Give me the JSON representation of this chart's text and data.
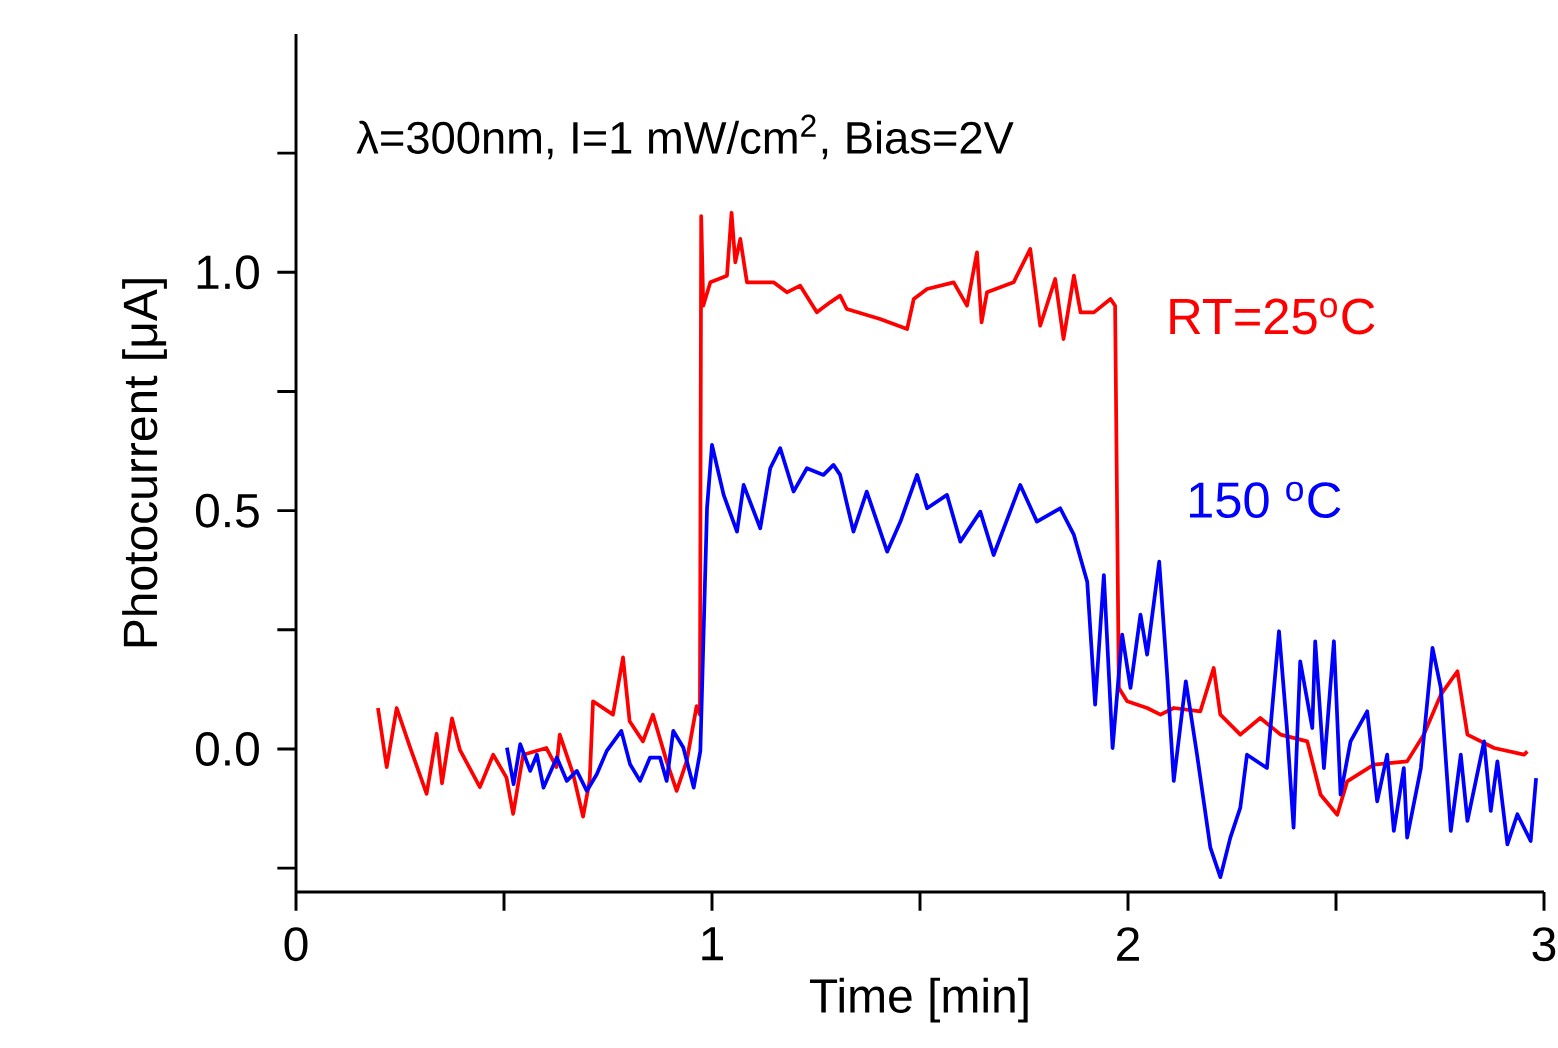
{
  "chart_data": {
    "type": "line",
    "xlabel": "Time [min]",
    "ylabel": "Photocurrent [μA]",
    "annotations": [
      "λ=300nm, I=1 mW/cm$^{2}$, Bias=2V"
    ],
    "xlim": [
      0,
      3
    ],
    "ylim": [
      -0.3,
      1.5
    ],
    "xticks": [
      0,
      {
        "value": 0.5,
        "label": null
      },
      1,
      {
        "value": 1.5,
        "label": null
      },
      2,
      {
        "value": 2.5,
        "label": null
      },
      3
    ],
    "yticks": [
      {
        "value": -0.25,
        "label": null
      },
      {
        "value": 0,
        "label": "0.0"
      },
      {
        "value": 0.25,
        "label": null
      },
      {
        "value": 0.5,
        "label": "0.5"
      },
      {
        "value": 0.75,
        "label": null
      },
      {
        "value": 1.0,
        "label": "1.0"
      },
      {
        "value": 1.25,
        "label": null
      }
    ],
    "marker": "none",
    "line_style": "solid",
    "series": [
      {
        "name": "RT=25$^{o}$C",
        "color": "#ff0000",
        "x": [
          0.197,
          0.218,
          0.242,
          0.274,
          0.314,
          0.338,
          0.351,
          0.375,
          0.394,
          0.442,
          0.474,
          0.506,
          0.522,
          0.546,
          0.602,
          0.626,
          0.634,
          0.666,
          0.69,
          0.706,
          0.714,
          0.762,
          0.786,
          0.802,
          0.834,
          0.858,
          0.891,
          0.915,
          0.939,
          0.963,
          0.971,
          0.974,
          0.979,
          0.996,
          1.036,
          1.047,
          1.056,
          1.068,
          1.084,
          1.148,
          1.18,
          1.212,
          1.252,
          1.284,
          1.308,
          1.324,
          1.404,
          1.469,
          1.485,
          1.517,
          1.581,
          1.613,
          1.637,
          1.648,
          1.661,
          1.725,
          1.765,
          1.789,
          1.825,
          1.845,
          1.87,
          1.886,
          1.918,
          1.958,
          1.969,
          1.978,
          1.998,
          2.046,
          2.078,
          2.11,
          2.174,
          2.206,
          2.222,
          2.27,
          2.318,
          2.367,
          2.431,
          2.463,
          2.503,
          2.527,
          2.591,
          2.671,
          2.711,
          2.752,
          2.792,
          2.816,
          2.88,
          2.952,
          2.96
        ],
        "values": [
          0.086,
          -0.038,
          0.086,
          0.004,
          -0.094,
          0.032,
          -0.072,
          0.064,
          -0.002,
          -0.08,
          -0.012,
          -0.06,
          -0.136,
          -0.012,
          0.002,
          -0.038,
          0.03,
          -0.052,
          -0.142,
          -0.066,
          0.1,
          0.072,
          0.192,
          0.058,
          0.016,
          0.072,
          -0.026,
          -0.088,
          -0.026,
          0.09,
          0.072,
          1.118,
          0.93,
          0.979,
          0.993,
          1.125,
          1.021,
          1.07,
          0.979,
          0.979,
          0.958,
          0.972,
          0.916,
          0.937,
          0.951,
          0.923,
          0.902,
          0.881,
          0.944,
          0.965,
          0.979,
          0.93,
          1.042,
          0.895,
          0.958,
          0.979,
          1.049,
          0.888,
          0.986,
          0.86,
          0.993,
          0.916,
          0.916,
          0.944,
          0.93,
          0.128,
          0.1,
          0.086,
          0.072,
          0.086,
          0.079,
          0.17,
          0.072,
          0.03,
          0.065,
          0.03,
          0.016,
          -0.096,
          -0.138,
          -0.068,
          -0.033,
          -0.026,
          0.03,
          0.114,
          0.163,
          0.03,
          0.002,
          -0.012,
          -0.005
        ]
      },
      {
        "name": "150 $^{o}$C",
        "color": "#0000ff",
        "x": [
          0.507,
          0.523,
          0.539,
          0.563,
          0.579,
          0.595,
          0.627,
          0.651,
          0.675,
          0.699,
          0.723,
          0.747,
          0.782,
          0.803,
          0.827,
          0.851,
          0.875,
          0.891,
          0.907,
          0.931,
          0.956,
          0.972,
          0.988,
          1.0,
          1.028,
          1.06,
          1.076,
          1.116,
          1.14,
          1.164,
          1.196,
          1.228,
          1.268,
          1.292,
          1.308,
          1.34,
          1.372,
          1.421,
          1.453,
          1.493,
          1.517,
          1.565,
          1.597,
          1.645,
          1.677,
          1.741,
          1.781,
          1.837,
          1.87,
          1.902,
          1.921,
          1.942,
          1.963,
          1.986,
          2.006,
          2.03,
          2.046,
          2.075,
          2.094,
          2.11,
          2.139,
          2.166,
          2.198,
          2.222,
          2.246,
          2.27,
          2.286,
          2.334,
          2.363,
          2.382,
          2.398,
          2.414,
          2.443,
          2.45,
          2.471,
          2.495,
          2.511,
          2.535,
          2.575,
          2.599,
          2.623,
          2.639,
          2.663,
          2.671,
          2.704,
          2.732,
          2.752,
          2.776,
          2.8,
          2.816,
          2.856,
          2.872,
          2.888,
          2.912,
          2.936,
          2.968,
          2.981
        ],
        "values": [
          0.003,
          -0.074,
          0.01,
          -0.046,
          -0.012,
          -0.081,
          -0.018,
          -0.067,
          -0.046,
          -0.088,
          -0.053,
          -0.004,
          0.038,
          -0.032,
          -0.067,
          -0.018,
          -0.018,
          -0.067,
          0.038,
          0.003,
          -0.081,
          -0.004,
          0.505,
          0.638,
          0.533,
          0.456,
          0.554,
          0.463,
          0.589,
          0.631,
          0.54,
          0.589,
          0.575,
          0.596,
          0.575,
          0.456,
          0.54,
          0.414,
          0.477,
          0.575,
          0.505,
          0.533,
          0.435,
          0.498,
          0.407,
          0.554,
          0.477,
          0.505,
          0.449,
          0.351,
          0.093,
          0.365,
          0.002,
          0.24,
          0.128,
          0.282,
          0.198,
          0.393,
          0.156,
          -0.067,
          0.142,
          -0.012,
          -0.207,
          -0.269,
          -0.186,
          -0.123,
          -0.012,
          -0.04,
          0.247,
          0.044,
          -0.165,
          0.184,
          0.044,
          0.226,
          -0.04,
          0.226,
          -0.096,
          0.016,
          0.079,
          -0.11,
          -0.012,
          -0.172,
          -0.04,
          -0.186,
          -0.04,
          0.212,
          0.128,
          -0.172,
          -0.012,
          -0.151,
          0.016,
          -0.13,
          -0.026,
          -0.2,
          -0.137,
          -0.193,
          -0.061
        ]
      }
    ]
  }
}
